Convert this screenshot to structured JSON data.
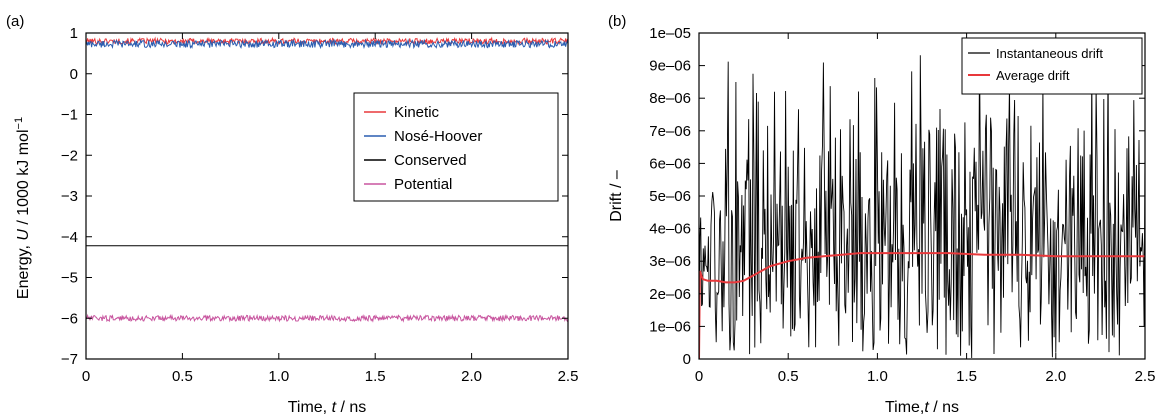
{
  "chart_data": [
    {
      "panel_label": "(a)",
      "type": "line",
      "xlabel_parts": [
        "Time, ",
        "t",
        " / ns"
      ],
      "ylabel_parts": [
        "Energy, ",
        "U",
        " / 1000 kJ mol",
        "−1"
      ],
      "xlim": [
        0,
        2.5
      ],
      "ylim": [
        -7,
        1
      ],
      "xticks": [
        0,
        0.5,
        1.0,
        1.5,
        2.0,
        2.5
      ],
      "xtick_labels": [
        "0",
        "0.5",
        "1.0",
        "1.5",
        "2.0",
        "2.5"
      ],
      "yticks": [
        1,
        0,
        -1,
        -2,
        -3,
        -4,
        -5,
        -6,
        -7
      ],
      "ytick_labels": [
        "1",
        "0",
        "−1",
        "−2",
        "−3",
        "−4",
        "−5",
        "−6",
        "−7"
      ],
      "grid": false,
      "legend_position": "center-right",
      "series": [
        {
          "name": "Kinetic",
          "color": "#e8383b",
          "mean": 0.8,
          "noise": 0.07
        },
        {
          "name": "Nosé-Hoover",
          "color": "#2a5db0",
          "mean": 0.73,
          "noise": 0.09
        },
        {
          "name": "Conserved",
          "color": "#000000",
          "mean": -4.22,
          "noise": 0.0
        },
        {
          "name": "Potential",
          "color": "#c8559f",
          "mean": -6.0,
          "noise": 0.07
        }
      ]
    },
    {
      "panel_label": "(b)",
      "type": "line",
      "xlabel_parts": [
        "Time,",
        "t",
        " / ns"
      ],
      "ylabel": "Drift / –",
      "xlim": [
        0,
        2.5
      ],
      "ylim": [
        0,
        1e-05
      ],
      "xticks": [
        0,
        0.5,
        1.0,
        1.5,
        2.0,
        2.5
      ],
      "xtick_labels": [
        "0",
        "0.5",
        "1.0",
        "1.5",
        "2.0",
        "2.5"
      ],
      "yticks": [
        0,
        1e-06,
        2e-06,
        3e-06,
        4e-06,
        5e-06,
        6e-06,
        7e-06,
        8e-06,
        9e-06,
        1e-05
      ],
      "ytick_labels": [
        "0",
        "1e–06",
        "2e–06",
        "3e–06",
        "4e–06",
        "5e–06",
        "6e–06",
        "7e–06",
        "8e–06",
        "9e–06",
        "1e–05"
      ],
      "grid": false,
      "legend_position": "top-right",
      "series": [
        {
          "name": "Instantaneous drift",
          "color": "#000000",
          "mean": 3.2e-06,
          "max": 9.8e-06
        },
        {
          "name": "Average drift",
          "color": "#e8383b",
          "x": [
            0,
            0.005,
            0.02,
            0.05,
            0.1,
            0.15,
            0.2,
            0.25,
            0.3,
            0.35,
            0.4,
            0.5,
            0.6,
            0.7,
            0.8,
            0.9,
            1.0,
            1.2,
            1.4,
            1.6,
            1.8,
            2.0,
            2.2,
            2.4,
            2.5
          ],
          "values": [
            0,
            2.7e-06,
            2.45e-06,
            2.4e-06,
            2.4e-06,
            2.35e-06,
            2.35e-06,
            2.4e-06,
            2.55e-06,
            2.7e-06,
            2.85e-06,
            3e-06,
            3.1e-06,
            3.15e-06,
            3.2e-06,
            3.25e-06,
            3.25e-06,
            3.25e-06,
            3.25e-06,
            3.2e-06,
            3.2e-06,
            3.15e-06,
            3.15e-06,
            3.15e-06,
            3.15e-06
          ]
        }
      ]
    }
  ]
}
